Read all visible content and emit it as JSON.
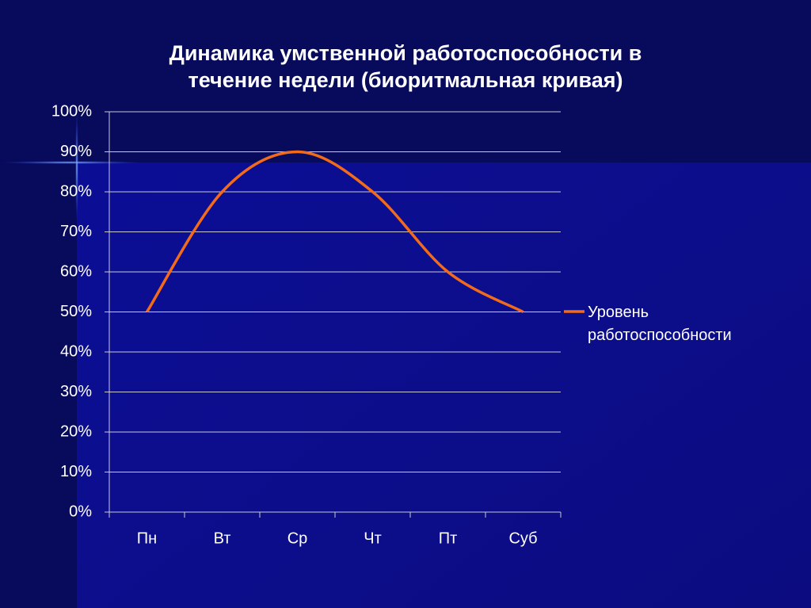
{
  "chart_data": {
    "type": "line",
    "title": "Динамика умственной работоспособности в течение недели (биоритмальная кривая)",
    "categories": [
      "Пн",
      "Вт",
      "Ср",
      "Чт",
      "Пт",
      "Суб"
    ],
    "series": [
      {
        "name": "Уровень работоспособности",
        "color": "#f26a1b",
        "values": [
          50,
          80,
          90,
          80,
          60,
          50
        ]
      }
    ],
    "ylim": [
      0,
      100
    ],
    "yticks": [
      {
        "value": 0,
        "label": "0%"
      },
      {
        "value": 10,
        "label": "10%"
      },
      {
        "value": 20,
        "label": "20%"
      },
      {
        "value": 30,
        "label": "30%"
      },
      {
        "value": 40,
        "label": "40%"
      },
      {
        "value": 50,
        "label": "50%"
      },
      {
        "value": 60,
        "label": "60%"
      },
      {
        "value": 70,
        "label": "70%"
      },
      {
        "value": 80,
        "label": "80%"
      },
      {
        "value": 90,
        "label": "90%"
      },
      {
        "value": 100,
        "label": "100%"
      }
    ],
    "grid": true,
    "smooth": true,
    "legend": "right"
  }
}
